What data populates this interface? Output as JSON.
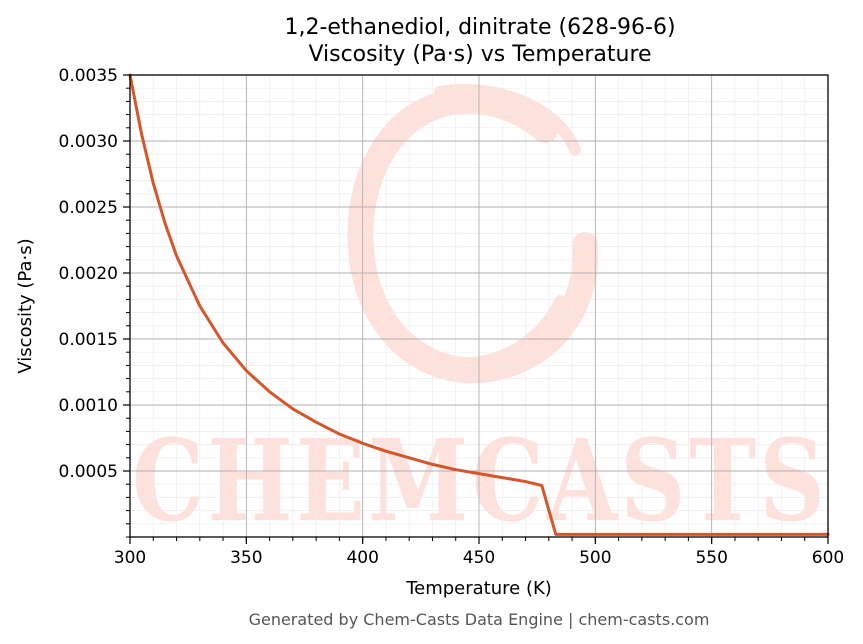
{
  "chart_data": {
    "type": "line",
    "title_line1": "1,2-ethanediol, dinitrate (628-96-6)",
    "title_line2": "Viscosity (Pa·s) vs Temperature",
    "xlabel": "Temperature (K)",
    "ylabel": "Viscosity (Pa·s)",
    "xlim": [
      300,
      600
    ],
    "ylim": [
      0,
      0.0035
    ],
    "x_ticks": [
      "300",
      "350",
      "400",
      "450",
      "500",
      "550",
      "600"
    ],
    "y_ticks": [
      "0.0005",
      "0.0010",
      "0.0015",
      "0.0020",
      "0.0025",
      "0.0030",
      "0.0035"
    ],
    "grid": true,
    "series": [
      {
        "color": "#d4562a",
        "x": [
          300,
          305,
          310,
          315,
          320,
          330,
          340,
          350,
          360,
          370,
          380,
          390,
          400,
          410,
          420,
          430,
          440,
          450,
          460,
          470,
          477,
          483,
          490,
          500,
          525,
          550,
          575,
          600
        ],
        "y": [
          0.0035,
          0.00305,
          0.00268,
          0.00238,
          0.00213,
          0.00175,
          0.00147,
          0.00126,
          0.0011,
          0.00097,
          0.00087,
          0.00078,
          0.00071,
          0.00065,
          0.0006,
          0.00055,
          0.00051,
          0.00048,
          0.00045,
          0.00042,
          0.00039,
          2e-05,
          2e-05,
          2e-05,
          2e-05,
          2e-05,
          2e-05,
          2e-05
        ]
      }
    ],
    "watermark": "CHEMCASTS"
  },
  "footer": "Generated by Chem-Casts Data Engine | chem-casts.com"
}
